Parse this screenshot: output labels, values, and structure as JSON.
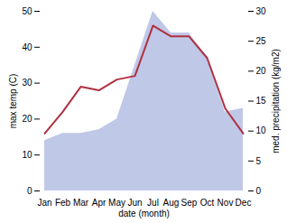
{
  "chart_data": {
    "type": "line",
    "categories": [
      "Jan",
      "Feb",
      "Mar",
      "Apr",
      "May",
      "Jun",
      "Jul",
      "Aug",
      "Sep",
      "Oct",
      "Nov",
      "Dec"
    ],
    "series": [
      {
        "type": "area",
        "axis": "y2",
        "color": "#c0c8e8",
        "values": [
          8.4,
          9.6,
          9.6,
          10.2,
          12,
          21,
          30,
          26.4,
          26.4,
          22.2,
          13.2,
          13.8
        ]
      },
      {
        "type": "line",
        "color": "#b03040",
        "values": [
          16,
          22,
          29,
          28,
          31,
          32,
          46,
          43,
          43,
          37,
          23,
          16
        ]
      }
    ],
    "xlabel": "date (month)",
    "ylabel": "max temp (C)",
    "y2label": "med. precipitation (kg/m2)",
    "ylim": [
      0,
      50
    ],
    "yticks": [
      0,
      10,
      20,
      30,
      40,
      50
    ],
    "y2lim": [
      0,
      30
    ],
    "y2ticks": [
      0,
      5,
      10,
      15,
      20,
      25,
      30
    ]
  }
}
